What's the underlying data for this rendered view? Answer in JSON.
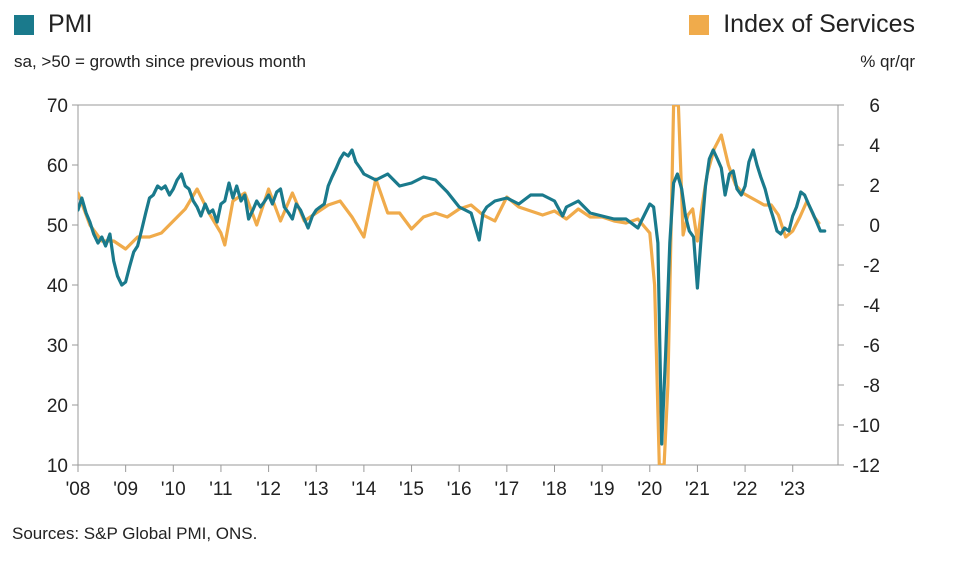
{
  "legend": {
    "left": {
      "label": "PMI",
      "color": "#1a7a8c"
    },
    "right": {
      "label": "Index of Services",
      "color": "#f0ab4b"
    }
  },
  "subtitle_left": "sa, >50 = growth since previous month",
  "subtitle_right": "% qr/qr",
  "source": "Sources: S&P Global PMI, ONS.",
  "chart_data": {
    "type": "line",
    "title": "",
    "x_ticks": [
      "'08",
      "'09",
      "'10",
      "'11",
      "'12",
      "'13",
      "'14",
      "'15",
      "'16",
      "'17",
      "'18",
      "'19",
      "'20",
      "'21",
      "'22",
      "'23"
    ],
    "x_range": [
      2008.0,
      2023.95
    ],
    "y_left": {
      "label": "sa, >50 = growth since previous month",
      "range": [
        10,
        70
      ],
      "ticks": [
        10,
        20,
        30,
        40,
        50,
        60,
        70
      ]
    },
    "y_right": {
      "label": "% qr/qr",
      "range": [
        -12,
        6
      ],
      "ticks": [
        -12,
        -10,
        -8,
        -6,
        -4,
        -2,
        0,
        2,
        4,
        6
      ]
    },
    "grid": false,
    "legend_position": "top",
    "series": [
      {
        "name": "PMI",
        "axis": "left",
        "color": "#1a7a8c",
        "x": [
          2008.0,
          2008.08,
          2008.17,
          2008.25,
          2008.33,
          2008.42,
          2008.5,
          2008.58,
          2008.67,
          2008.75,
          2008.83,
          2008.92,
          2009.0,
          2009.08,
          2009.17,
          2009.25,
          2009.33,
          2009.42,
          2009.5,
          2009.58,
          2009.67,
          2009.75,
          2009.83,
          2009.92,
          2010.0,
          2010.08,
          2010.17,
          2010.25,
          2010.33,
          2010.42,
          2010.5,
          2010.58,
          2010.67,
          2010.75,
          2010.83,
          2010.92,
          2011.0,
          2011.08,
          2011.17,
          2011.25,
          2011.33,
          2011.42,
          2011.5,
          2011.58,
          2011.67,
          2011.75,
          2011.83,
          2011.92,
          2012.0,
          2012.08,
          2012.17,
          2012.25,
          2012.33,
          2012.42,
          2012.5,
          2012.58,
          2012.67,
          2012.75,
          2012.83,
          2012.92,
          2013.0,
          2013.08,
          2013.17,
          2013.25,
          2013.33,
          2013.42,
          2013.5,
          2013.58,
          2013.67,
          2013.75,
          2013.83,
          2013.92,
          2014.0,
          2014.25,
          2014.5,
          2014.75,
          2015.0,
          2015.25,
          2015.5,
          2015.75,
          2016.0,
          2016.25,
          2016.42,
          2016.5,
          2016.58,
          2016.75,
          2017.0,
          2017.25,
          2017.5,
          2017.75,
          2018.0,
          2018.17,
          2018.25,
          2018.5,
          2018.75,
          2019.0,
          2019.25,
          2019.5,
          2019.75,
          2020.0,
          2020.08,
          2020.17,
          2020.25,
          2020.33,
          2020.42,
          2020.5,
          2020.58,
          2020.67,
          2020.75,
          2020.83,
          2020.92,
          2021.0,
          2021.08,
          2021.17,
          2021.25,
          2021.33,
          2021.42,
          2021.5,
          2021.58,
          2021.67,
          2021.75,
          2021.83,
          2021.92,
          2022.0,
          2022.08,
          2022.17,
          2022.25,
          2022.33,
          2022.42,
          2022.5,
          2022.58,
          2022.67,
          2022.75,
          2022.83,
          2022.92,
          2023.0,
          2023.08,
          2023.17,
          2023.25,
          2023.33,
          2023.42,
          2023.5,
          2023.58,
          2023.67
        ],
        "values": [
          52.5,
          54.5,
          52.0,
          50.5,
          48.5,
          47.0,
          48.0,
          46.5,
          48.5,
          44.0,
          41.5,
          40.0,
          40.5,
          43.0,
          45.5,
          46.5,
          49.0,
          52.0,
          54.5,
          55.0,
          56.5,
          56.0,
          56.5,
          55.0,
          56.0,
          57.5,
          58.5,
          56.5,
          56.0,
          54.0,
          53.0,
          51.5,
          53.5,
          52.0,
          52.5,
          50.5,
          53.5,
          54.0,
          57.0,
          54.5,
          56.5,
          54.0,
          55.0,
          51.0,
          52.5,
          54.0,
          53.0,
          54.0,
          55.0,
          53.5,
          55.5,
          56.0,
          53.0,
          52.0,
          51.0,
          53.5,
          52.5,
          51.0,
          49.5,
          51.5,
          52.5,
          53.0,
          53.5,
          56.5,
          58.0,
          59.5,
          61.0,
          62.0,
          61.5,
          62.5,
          60.5,
          59.5,
          58.5,
          57.5,
          58.5,
          56.5,
          57.0,
          58.0,
          57.5,
          55.5,
          53.0,
          52.0,
          47.5,
          52.0,
          53.0,
          54.0,
          54.5,
          53.5,
          55.0,
          55.0,
          54.0,
          51.5,
          53.0,
          54.0,
          52.0,
          51.5,
          51.0,
          51.0,
          49.5,
          53.5,
          53.0,
          47.0,
          13.5,
          28.0,
          47.0,
          57.0,
          58.5,
          56.0,
          51.5,
          49.0,
          48.0,
          39.5,
          48.0,
          56.5,
          61.0,
          62.5,
          61.0,
          59.5,
          55.0,
          58.5,
          59.0,
          56.0,
          55.0,
          56.5,
          60.5,
          62.5,
          60.0,
          58.0,
          56.0,
          53.5,
          51.5,
          49.0,
          48.5,
          49.5,
          49.0,
          51.5,
          53.0,
          55.5,
          55.0,
          53.5,
          52.0,
          50.5,
          49.0,
          49.0
        ]
      },
      {
        "name": "Index of Services",
        "axis": "right",
        "color": "#f0ab4b",
        "x": [
          2008.0,
          2008.25,
          2008.5,
          2008.75,
          2009.0,
          2009.25,
          2009.5,
          2009.75,
          2010.0,
          2010.25,
          2010.5,
          2010.75,
          2011.0,
          2011.08,
          2011.25,
          2011.5,
          2011.75,
          2012.0,
          2012.25,
          2012.5,
          2012.75,
          2013.0,
          2013.25,
          2013.5,
          2013.75,
          2014.0,
          2014.25,
          2014.5,
          2014.75,
          2015.0,
          2015.25,
          2015.5,
          2015.75,
          2016.0,
          2016.25,
          2016.5,
          2016.75,
          2017.0,
          2017.25,
          2017.5,
          2017.75,
          2018.0,
          2018.25,
          2018.5,
          2018.75,
          2019.0,
          2019.25,
          2019.5,
          2019.75,
          2020.0,
          2020.1,
          2020.2,
          2020.3,
          2020.38,
          2020.5,
          2020.6,
          2020.7,
          2020.8,
          2020.9,
          2021.0,
          2021.1,
          2021.2,
          2021.35,
          2021.5,
          2021.65,
          2021.8,
          2021.95,
          2022.1,
          2022.25,
          2022.4,
          2022.55,
          2022.7,
          2022.85,
          2023.0,
          2023.15,
          2023.3,
          2023.45,
          2023.55
        ],
        "values": [
          1.6,
          0.0,
          -0.8,
          -0.8,
          -1.2,
          -0.6,
          -0.6,
          -0.4,
          0.2,
          0.8,
          1.8,
          0.6,
          -0.4,
          -1.0,
          1.2,
          1.6,
          0.0,
          1.8,
          0.2,
          1.6,
          0.2,
          0.6,
          1.0,
          1.2,
          0.4,
          -0.6,
          2.3,
          0.6,
          0.6,
          -0.2,
          0.4,
          0.6,
          0.4,
          0.8,
          1.0,
          0.5,
          0.2,
          1.4,
          0.9,
          0.7,
          0.5,
          0.7,
          0.3,
          0.8,
          0.4,
          0.4,
          0.2,
          0.1,
          0.3,
          -0.4,
          -3.0,
          -12.0,
          -12.0,
          -8.0,
          6.0,
          6.0,
          -0.5,
          0.5,
          0.8,
          -0.8,
          1.0,
          2.5,
          3.8,
          4.5,
          3.0,
          2.0,
          1.6,
          1.4,
          1.2,
          1.0,
          1.0,
          0.5,
          -0.6,
          -0.3,
          0.4,
          1.2,
          0.4,
          0.1
        ]
      }
    ]
  }
}
